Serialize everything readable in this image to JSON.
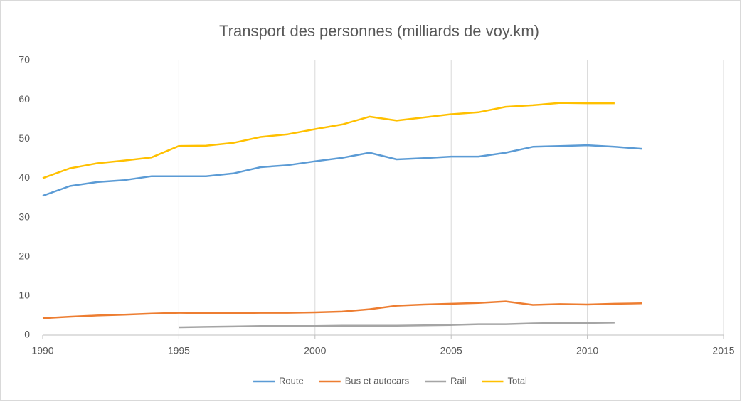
{
  "chart_data": {
    "type": "line",
    "title": "Transport des personnes (milliards de voy.km)",
    "x": [
      1990,
      1991,
      1992,
      1993,
      1994,
      1995,
      1996,
      1997,
      1998,
      1999,
      2000,
      2001,
      2002,
      2003,
      2004,
      2005,
      2006,
      2007,
      2008,
      2009,
      2010,
      2011,
      2012
    ],
    "series": [
      {
        "name": "Route",
        "color": "#5b9bd5",
        "values": [
          35.5,
          38,
          39,
          39.5,
          40.5,
          40.5,
          40.5,
          41.2,
          42.8,
          43.3,
          44.3,
          45.2,
          46.5,
          44.8,
          45.1,
          45.5,
          45.5,
          46.5,
          48,
          48.2,
          48.4,
          48,
          47.5
        ]
      },
      {
        "name": "Bus et autocars",
        "color": "#ed7d31",
        "values": [
          4.3,
          4.7,
          5,
          5.2,
          5.5,
          5.7,
          5.6,
          5.6,
          5.7,
          5.7,
          5.8,
          6,
          6.6,
          7.5,
          7.8,
          8,
          8.2,
          8.6,
          7.7,
          7.9,
          7.8,
          8,
          8.1
        ]
      },
      {
        "name": "Rail",
        "color": "#a5a5a5",
        "values": [
          null,
          null,
          null,
          null,
          null,
          2.0,
          2.1,
          2.2,
          2.3,
          2.3,
          2.3,
          2.4,
          2.4,
          2.4,
          2.5,
          2.6,
          2.8,
          2.8,
          3,
          3.1,
          3.1,
          3.2,
          null
        ]
      },
      {
        "name": "Total",
        "color": "#ffc000",
        "values": [
          40,
          42.5,
          43.8,
          44.5,
          45.3,
          48.2,
          48.3,
          49,
          50.5,
          51.2,
          52.5,
          53.7,
          55.7,
          54.7,
          55.5,
          56.3,
          56.8,
          58.2,
          58.6,
          59.2,
          59.1,
          59.1,
          null
        ]
      }
    ],
    "xlim": [
      1990,
      2015
    ],
    "xticks": [
      1990,
      1995,
      2000,
      2005,
      2010,
      2015
    ],
    "ylim": [
      0,
      70
    ],
    "yticks": [
      0,
      10,
      20,
      30,
      40,
      50,
      60,
      70
    ],
    "grid": "x",
    "legend": "bottom"
  }
}
